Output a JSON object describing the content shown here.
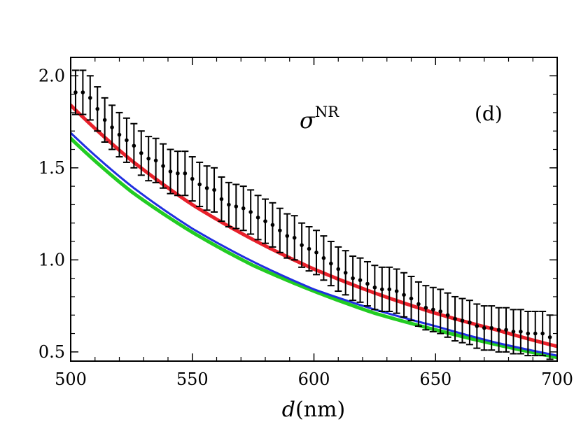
{
  "chart_data": {
    "type": "line",
    "title": "",
    "panel_label": "(d)",
    "annotation": {
      "symbol": "σ",
      "superscript": "NR"
    },
    "xlabel": {
      "italic": "d",
      "rest": "(nm)"
    },
    "ylabel": "",
    "xlim": [
      500,
      700
    ],
    "ylim": [
      0.45,
      2.1
    ],
    "xticks": [
      500,
      550,
      600,
      650,
      700
    ],
    "xtick_labels": [
      "500",
      "550",
      "600",
      "650",
      "700"
    ],
    "yticks": [
      0.5,
      1.0,
      1.5,
      2.0
    ],
    "ytick_labels": [
      "0.5",
      "1.0",
      "1.5",
      "2.0"
    ],
    "grid": false,
    "series": [
      {
        "name": "red",
        "color": "#e8202a",
        "x": [
          500,
          525,
          550,
          575,
          600,
          625,
          650,
          675,
          700
        ],
        "values": [
          1.84,
          1.54,
          1.3,
          1.11,
          0.95,
          0.82,
          0.71,
          0.62,
          0.53
        ]
      },
      {
        "name": "blue",
        "color": "#2030e0",
        "x": [
          500,
          525,
          550,
          575,
          600,
          625,
          650,
          675,
          700
        ],
        "values": [
          1.69,
          1.4,
          1.17,
          0.99,
          0.84,
          0.73,
          0.64,
          0.55,
          0.48
        ]
      },
      {
        "name": "green",
        "color": "#22cc22",
        "x": [
          500,
          525,
          550,
          575,
          600,
          625,
          650,
          675,
          700
        ],
        "values": [
          1.66,
          1.37,
          1.15,
          0.97,
          0.83,
          0.71,
          0.62,
          0.54,
          0.47
        ]
      }
    ],
    "measurements": {
      "name": "data",
      "x": [
        502,
        505,
        508,
        511,
        514,
        517,
        520,
        523,
        526,
        529,
        532,
        535,
        538,
        541,
        544,
        547,
        550,
        553,
        556,
        559,
        562,
        565,
        568,
        571,
        574,
        577,
        580,
        583,
        586,
        589,
        592,
        595,
        598,
        601,
        604,
        607,
        610,
        613,
        616,
        619,
        622,
        625,
        628,
        631,
        634,
        637,
        640,
        643,
        646,
        649,
        652,
        655,
        658,
        661,
        664,
        667,
        670,
        673,
        676,
        679,
        682,
        685,
        688,
        691,
        694,
        697
      ],
      "y": [
        1.91,
        1.91,
        1.88,
        1.82,
        1.76,
        1.72,
        1.68,
        1.65,
        1.62,
        1.58,
        1.55,
        1.54,
        1.51,
        1.48,
        1.47,
        1.47,
        1.44,
        1.41,
        1.39,
        1.38,
        1.33,
        1.3,
        1.29,
        1.28,
        1.26,
        1.23,
        1.21,
        1.19,
        1.16,
        1.13,
        1.12,
        1.08,
        1.06,
        1.04,
        1.01,
        0.98,
        0.95,
        0.93,
        0.9,
        0.89,
        0.87,
        0.85,
        0.84,
        0.84,
        0.83,
        0.81,
        0.79,
        0.76,
        0.74,
        0.73,
        0.72,
        0.7,
        0.68,
        0.67,
        0.66,
        0.64,
        0.63,
        0.63,
        0.62,
        0.62,
        0.61,
        0.61,
        0.6,
        0.6,
        0.6,
        0.58
      ],
      "error": 0.12
    }
  }
}
